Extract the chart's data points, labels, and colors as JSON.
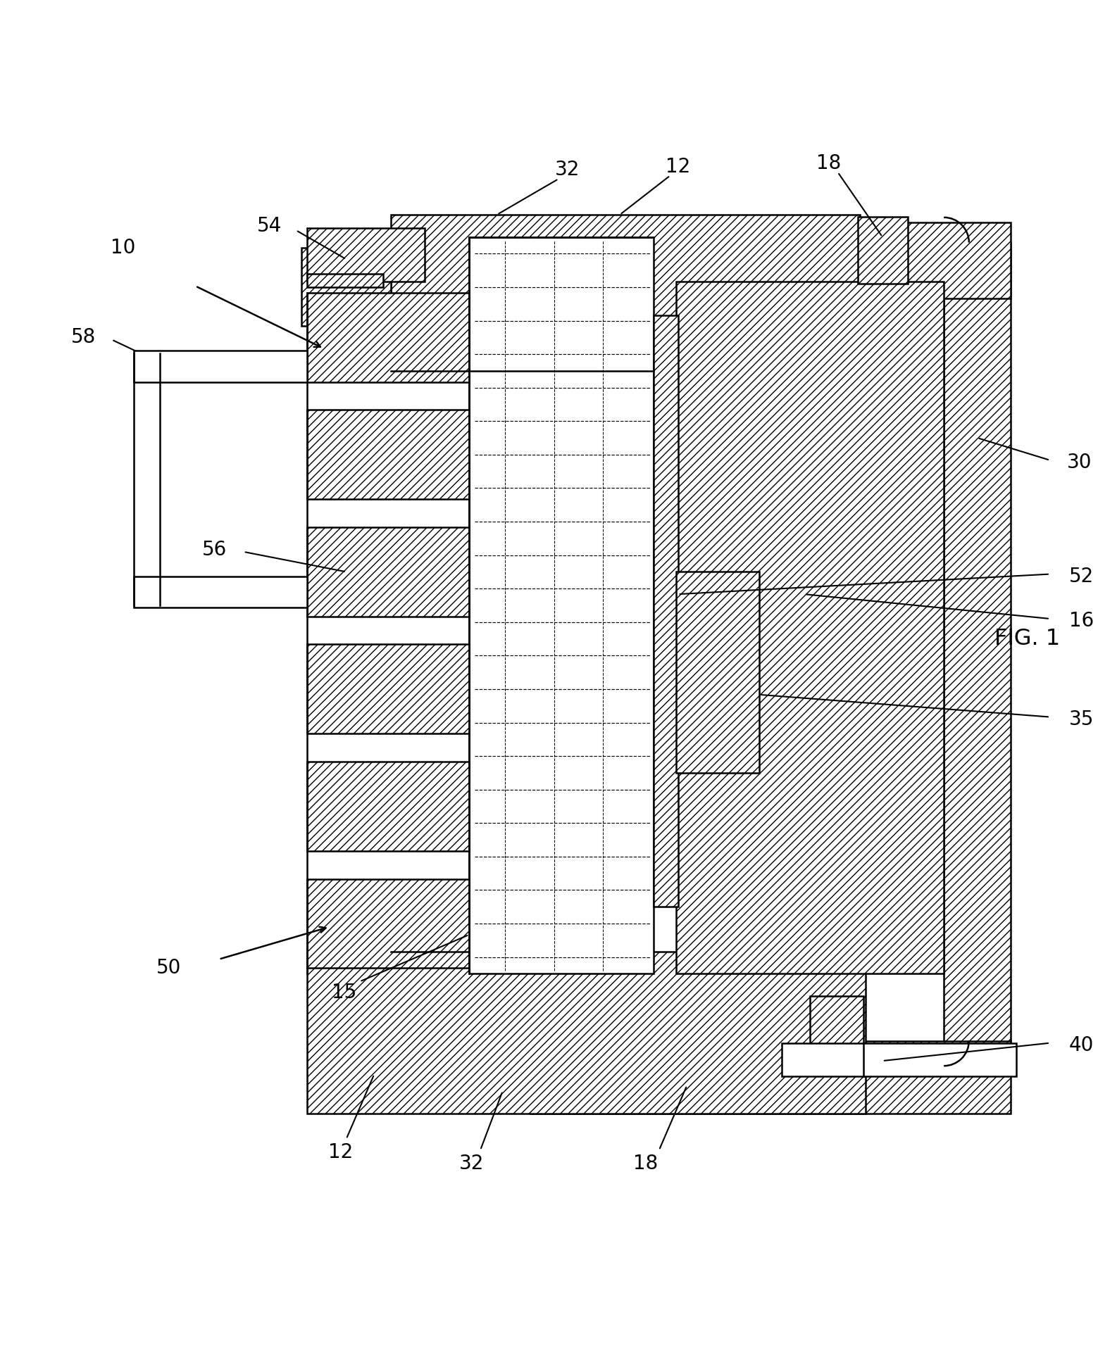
{
  "bg": "#ffffff",
  "lc": "#000000",
  "lw": 1.8,
  "fs": 20,
  "figsize": [
    15.86,
    19.42
  ],
  "dpi": 100
}
